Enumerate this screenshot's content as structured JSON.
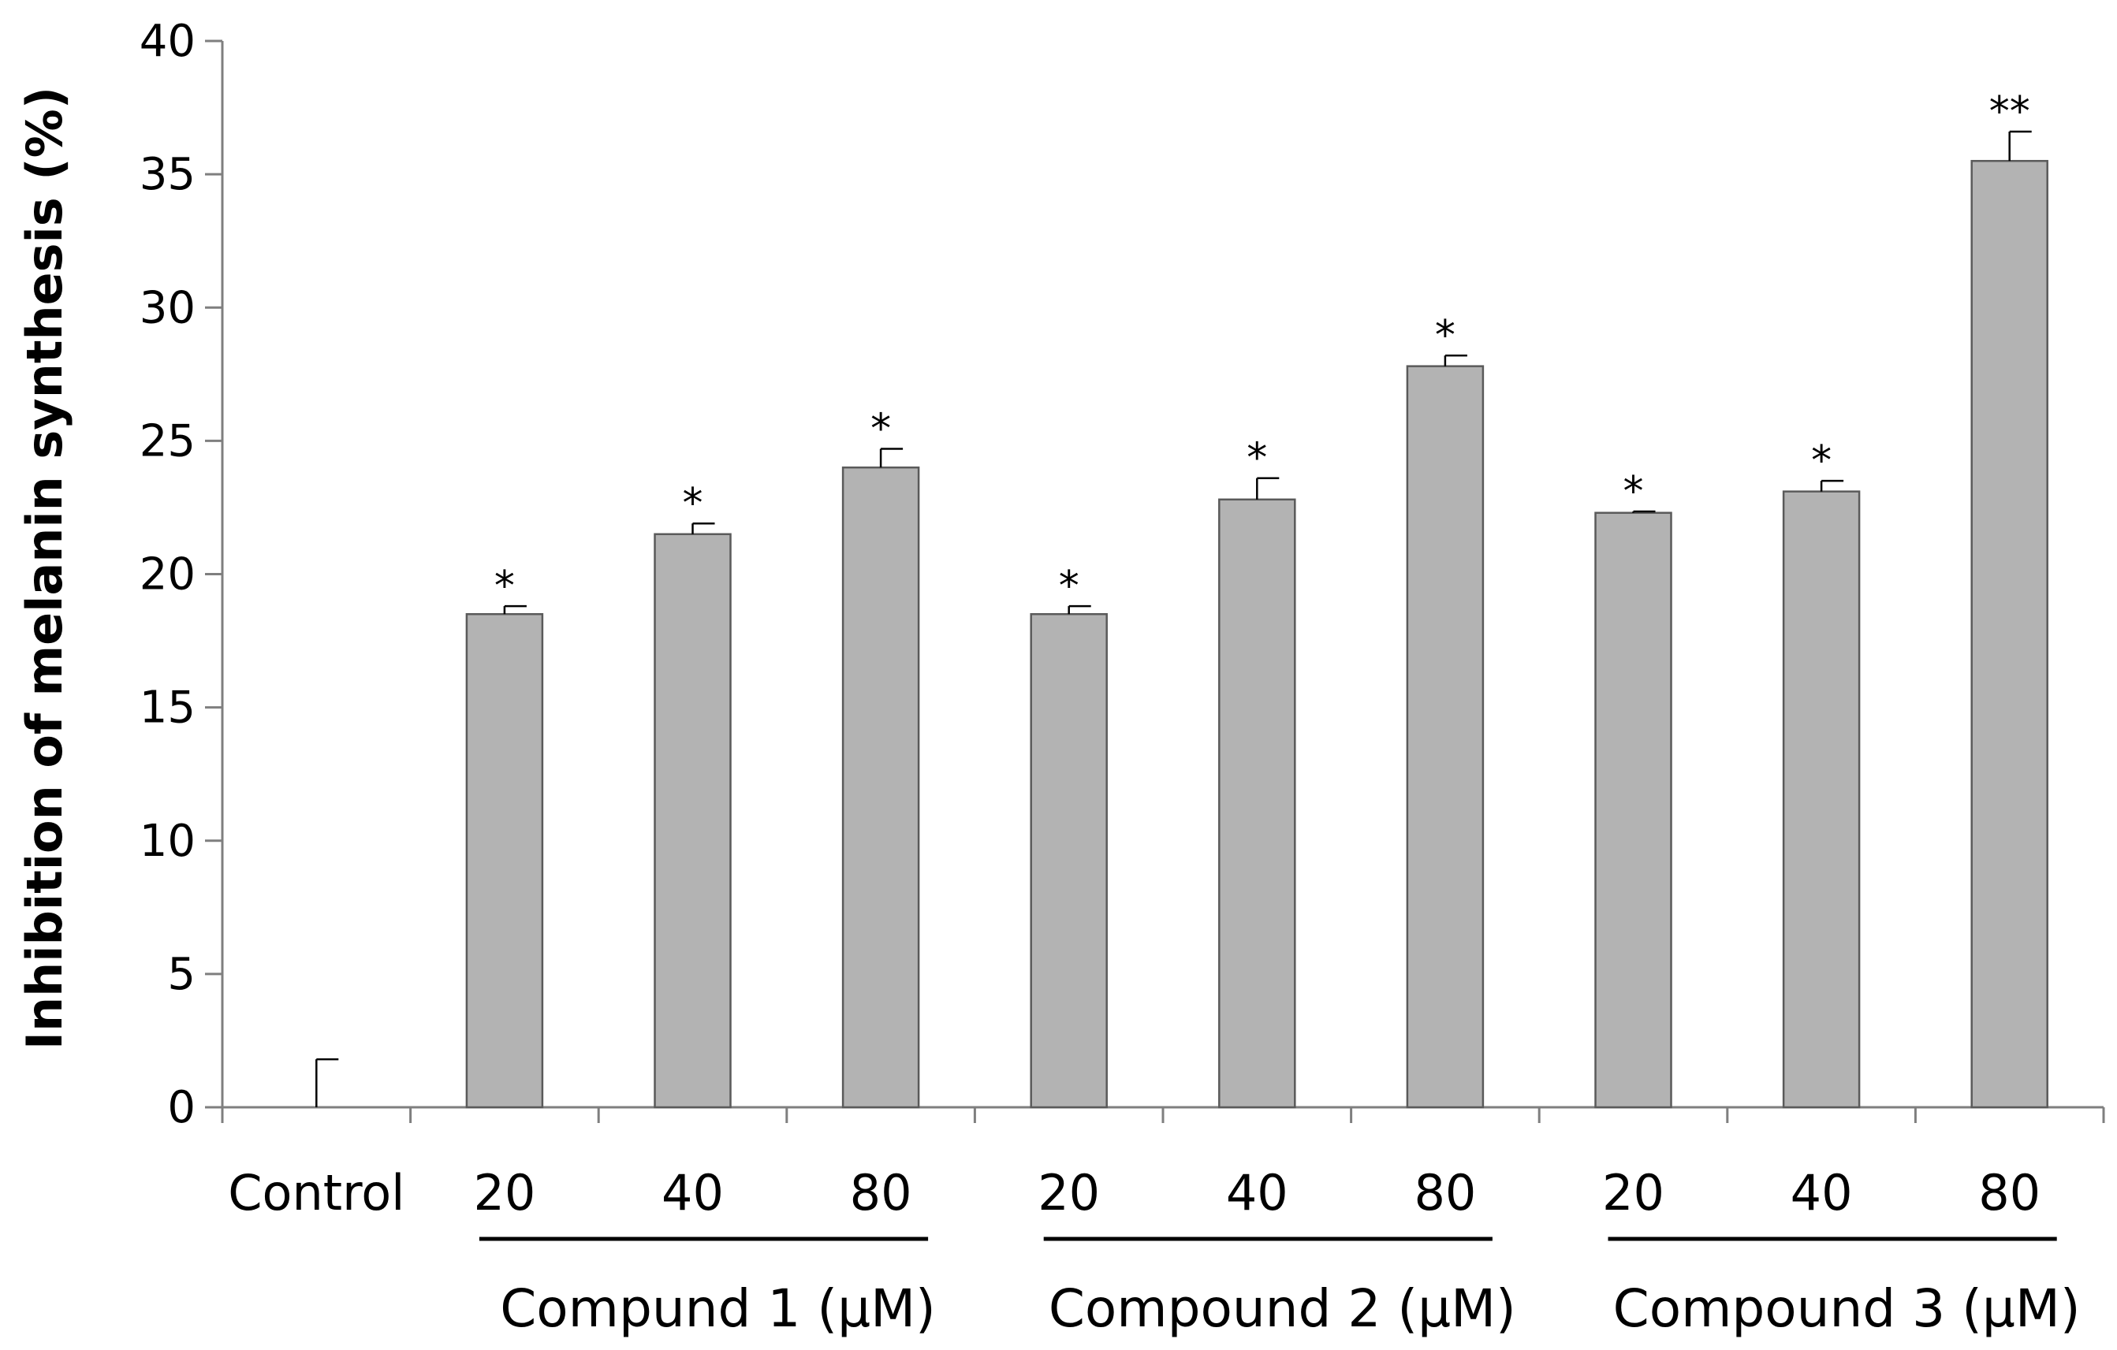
{
  "chart_data": {
    "type": "bar",
    "ylabel": "Inhibition of melanin synthesis (%)",
    "ylim": [
      0,
      40
    ],
    "yticks": [
      "0",
      "5",
      "10",
      "15",
      "20",
      "25",
      "30",
      "35",
      "40"
    ],
    "grid": false,
    "bar_color": "#b3b3b3",
    "categories": [
      "Control",
      "20",
      "40",
      "80",
      "20",
      "40",
      "80",
      "20",
      "40",
      "80"
    ],
    "values": [
      0,
      18.5,
      21.5,
      24.0,
      18.5,
      22.8,
      27.8,
      22.3,
      23.1,
      35.5
    ],
    "errors": [
      1.8,
      0.3,
      0.4,
      0.7,
      0.3,
      0.8,
      0.4,
      0.05,
      0.4,
      1.1
    ],
    "significance": [
      "",
      "*",
      "*",
      "*",
      "*",
      "*",
      "*",
      "*",
      "*",
      "**"
    ],
    "groups": [
      {
        "label": "Compund 1 (μM)",
        "start": 1,
        "end": 3
      },
      {
        "label": "Compound 2 (μM)",
        "start": 4,
        "end": 6
      },
      {
        "label": "Compound 3 (μM)",
        "start": 7,
        "end": 9
      }
    ]
  }
}
